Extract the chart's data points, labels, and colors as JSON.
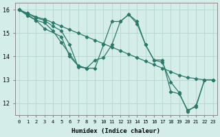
{
  "xlabel": "Humidex (Indice chaleur)",
  "background_color": "#d4ede8",
  "grid_color": "#b8d8d0",
  "line_color": "#2a7a6a",
  "xlim": [
    -0.5,
    23.5
  ],
  "ylim": [
    11.5,
    16.3
  ],
  "yticks": [
    12,
    13,
    14,
    15,
    16
  ],
  "xticks": [
    0,
    1,
    2,
    3,
    4,
    5,
    6,
    7,
    8,
    9,
    10,
    11,
    12,
    13,
    14,
    15,
    16,
    17,
    18,
    19,
    20,
    21,
    22,
    23
  ],
  "series": [
    {
      "x": [
        0,
        1,
        2,
        3,
        4,
        5,
        6,
        7,
        8,
        9,
        10,
        11,
        12,
        13,
        14,
        15,
        16,
        17,
        18,
        19,
        20,
        21,
        22,
        23
      ],
      "y": [
        16.0,
        15.85,
        15.7,
        15.6,
        15.45,
        15.3,
        15.15,
        15.0,
        14.85,
        14.7,
        14.55,
        14.4,
        14.25,
        14.1,
        13.95,
        13.8,
        13.65,
        13.5,
        13.35,
        13.2,
        13.1,
        13.05,
        13.0,
        13.0
      ]
    },
    {
      "x": [
        0,
        1,
        2,
        3,
        4,
        5,
        6,
        7,
        8,
        9,
        10,
        11,
        12,
        13,
        14,
        15,
        16,
        17,
        18,
        19,
        20,
        21,
        22,
        23
      ],
      "y": [
        16.0,
        15.85,
        15.65,
        15.55,
        15.3,
        15.1,
        14.5,
        13.55,
        13.5,
        13.5,
        14.5,
        15.5,
        15.5,
        15.8,
        15.5,
        14.5,
        13.85,
        13.85,
        12.5,
        12.4,
        11.7,
        11.85,
        13.0,
        13.0
      ]
    },
    {
      "x": [
        0,
        1,
        2,
        3,
        4,
        5,
        6,
        7,
        8,
        9,
        10,
        11,
        12,
        13,
        14,
        15,
        16,
        17,
        18,
        19,
        20,
        21,
        22,
        23
      ],
      "y": [
        16.0,
        15.8,
        15.55,
        15.45,
        15.1,
        14.6,
        14.1,
        13.6,
        13.5,
        13.85,
        13.95,
        14.5,
        15.5,
        15.8,
        15.4,
        14.5,
        13.85,
        13.75,
        12.9,
        12.45,
        11.65,
        11.9,
        13.0,
        13.0
      ]
    },
    {
      "x": [
        0,
        1,
        2,
        3,
        5,
        6,
        7,
        8
      ],
      "y": [
        16.0,
        15.75,
        15.55,
        15.2,
        14.85,
        14.0,
        13.6,
        13.5
      ]
    }
  ]
}
